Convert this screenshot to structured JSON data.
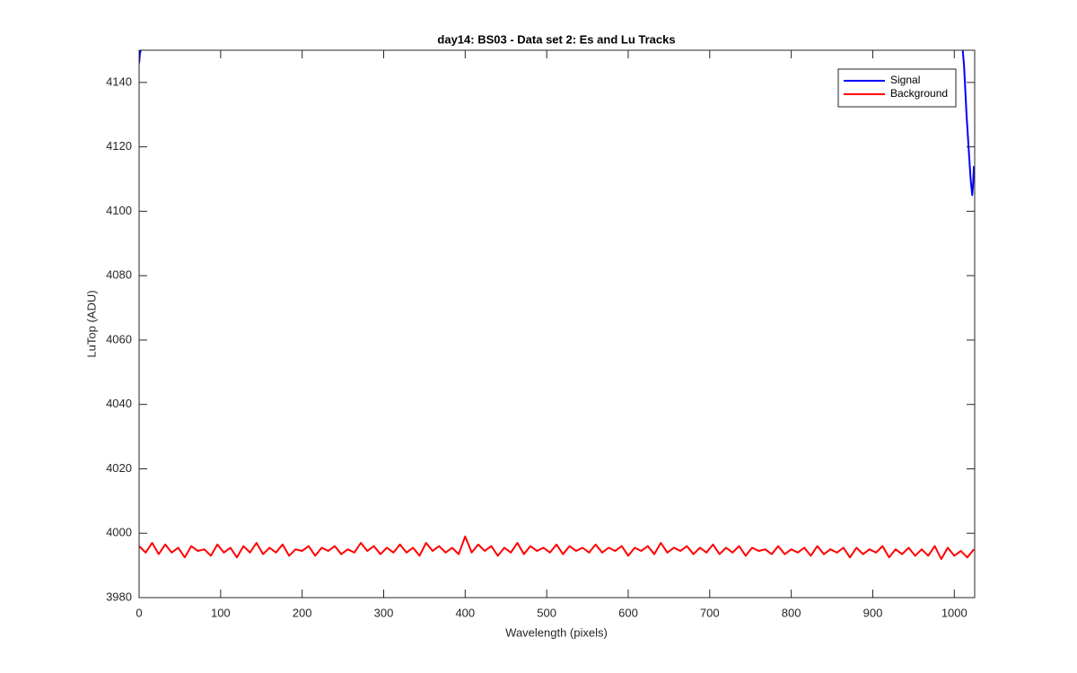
{
  "chart_data": {
    "type": "line",
    "title": "day14: BS03 - Data set 2: Es and Lu Tracks",
    "xlabel": "Wavelength (pixels)",
    "ylabel": "LuTop (ADU)",
    "xlim": [
      0,
      1025
    ],
    "ylim": [
      3980,
      4150
    ],
    "xticks": [
      0,
      100,
      200,
      300,
      400,
      500,
      600,
      700,
      800,
      900,
      1000
    ],
    "yticks": [
      3980,
      4000,
      4020,
      4040,
      4060,
      4080,
      4100,
      4120,
      4140
    ],
    "grid": false,
    "legend": "top-right",
    "series": [
      {
        "name": "Signal",
        "color": "#0000ff",
        "x": [
          0,
          1,
          3,
          5,
          1010,
          1012,
          1015,
          1018,
          1020,
          1022,
          1023,
          1024
        ],
        "values": [
          4146,
          4149,
          4151,
          null,
          4151,
          4145,
          4130,
          4118,
          4110,
          4105,
          4108,
          4114
        ]
      },
      {
        "name": "Background",
        "color": "#ff0000",
        "x": [
          0,
          8,
          16,
          24,
          32,
          40,
          48,
          56,
          64,
          72,
          80,
          88,
          96,
          104,
          112,
          120,
          128,
          136,
          144,
          152,
          160,
          168,
          176,
          184,
          192,
          200,
          208,
          216,
          224,
          232,
          240,
          248,
          256,
          264,
          272,
          280,
          288,
          296,
          304,
          312,
          320,
          328,
          336,
          344,
          352,
          360,
          368,
          376,
          384,
          392,
          400,
          408,
          416,
          424,
          432,
          440,
          448,
          456,
          464,
          472,
          480,
          488,
          496,
          504,
          512,
          520,
          528,
          536,
          544,
          552,
          560,
          568,
          576,
          584,
          592,
          600,
          608,
          616,
          624,
          632,
          640,
          648,
          656,
          664,
          672,
          680,
          688,
          696,
          704,
          712,
          720,
          728,
          736,
          744,
          752,
          760,
          768,
          776,
          784,
          792,
          800,
          808,
          816,
          824,
          832,
          840,
          848,
          856,
          864,
          872,
          880,
          888,
          896,
          904,
          912,
          920,
          928,
          936,
          944,
          952,
          960,
          968,
          976,
          984,
          992,
          1000,
          1008,
          1016,
          1024
        ],
        "values": [
          3996,
          3994,
          3997,
          3993.5,
          3996.5,
          3994,
          3995.5,
          3992.5,
          3996,
          3994.5,
          3995,
          3993,
          3996.5,
          3994,
          3995.5,
          3992.5,
          3996,
          3994,
          3997,
          3993.5,
          3995.5,
          3994,
          3996.5,
          3993,
          3995,
          3994.5,
          3996,
          3993,
          3995.5,
          3994.5,
          3996,
          3993.5,
          3995,
          3994,
          3997,
          3994.5,
          3996,
          3993.5,
          3995.5,
          3994,
          3996.5,
          3994,
          3995.5,
          3993,
          3997,
          3994.5,
          3996,
          3994,
          3995.5,
          3993.5,
          3999,
          3994,
          3996.5,
          3994.5,
          3996,
          3993,
          3995.5,
          3994,
          3997,
          3993.5,
          3996,
          3994.5,
          3995.5,
          3994,
          3996.5,
          3993.5,
          3996,
          3994.5,
          3995.5,
          3994,
          3996.5,
          3994,
          3995.5,
          3994.5,
          3996,
          3993,
          3995.5,
          3994.5,
          3996,
          3993.5,
          3997,
          3994,
          3995.5,
          3994.5,
          3996,
          3993.5,
          3995.5,
          3994,
          3996.5,
          3993.5,
          3995.5,
          3994,
          3996,
          3993,
          3995.5,
          3994.5,
          3995,
          3993.5,
          3996,
          3993.5,
          3995,
          3994,
          3995.5,
          3993,
          3996,
          3993.5,
          3995,
          3994,
          3995.5,
          3992.5,
          3995.5,
          3993.5,
          3995,
          3994,
          3996,
          3992.5,
          3995,
          3993.5,
          3995.5,
          3993,
          3995,
          3993,
          3996,
          3992,
          3995.5,
          3993,
          3994.5,
          3992.5,
          3995
        ]
      }
    ]
  }
}
